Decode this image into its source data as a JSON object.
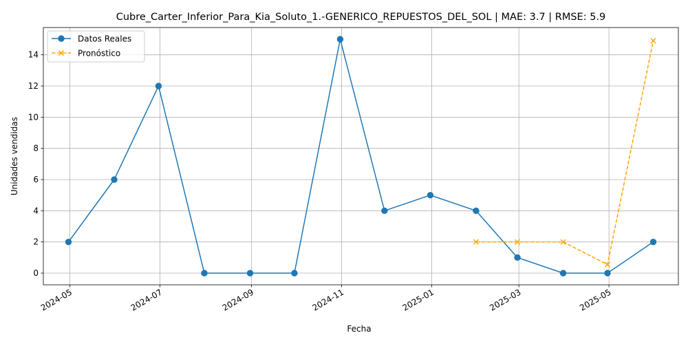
{
  "chart_data": {
    "type": "line",
    "title": "Cubre_Carter_Inferior_Para_Kia_Soluto_1.-GENERICO_REPUESTOS_DEL_SOL | MAE: 3.7 | RMSE: 5.9",
    "xlabel": "Fecha",
    "ylabel": "Unidades vendidas",
    "xlim": [
      "2024-04-13",
      "2025-06-17"
    ],
    "ylim": [
      -0.75,
      15.75
    ],
    "x_ticks": [
      "2024-05",
      "2024-07",
      "2024-09",
      "2024-11",
      "2025-01",
      "2025-03",
      "2025-05"
    ],
    "y_ticks": [
      0,
      2,
      4,
      6,
      8,
      10,
      12,
      14
    ],
    "grid": true,
    "legend_position": "upper-left",
    "series": [
      {
        "name": "Datos Reales",
        "color": "#1f77b4",
        "line_style": "solid",
        "marker": "circle",
        "x": [
          "2024-04-30",
          "2024-05-31",
          "2024-06-30",
          "2024-07-31",
          "2024-08-31",
          "2024-09-30",
          "2024-10-31",
          "2024-11-30",
          "2024-12-31",
          "2025-01-31",
          "2025-02-28",
          "2025-03-31",
          "2025-04-30",
          "2025-05-31"
        ],
        "values": [
          2,
          6,
          12,
          0,
          0,
          0,
          15,
          4,
          5,
          4,
          1,
          0,
          0,
          2
        ]
      },
      {
        "name": "Pronóstico",
        "color": "#ffa500",
        "line_style": "dashed",
        "marker": "x",
        "x": [
          "2025-01-31",
          "2025-02-28",
          "2025-03-31",
          "2025-04-30",
          "2025-05-31"
        ],
        "values": [
          2.0,
          2.0,
          2.0,
          0.55,
          14.9
        ]
      }
    ]
  }
}
